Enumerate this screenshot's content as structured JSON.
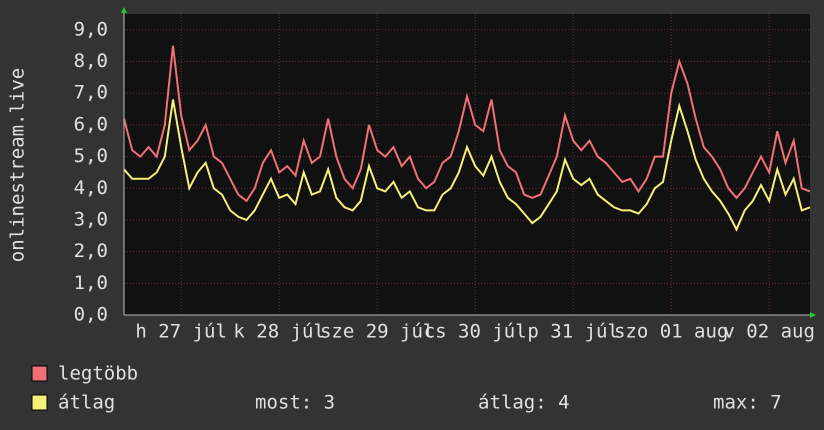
{
  "chart_data": {
    "type": "line",
    "y_label": "onlinestream.live",
    "ylim": [
      0,
      9.5
    ],
    "yticks": [
      {
        "value": 0,
        "label": "0,0"
      },
      {
        "value": 1,
        "label": "1,0"
      },
      {
        "value": 2,
        "label": "2,0"
      },
      {
        "value": 3,
        "label": "3,0"
      },
      {
        "value": 4,
        "label": "4,0"
      },
      {
        "value": 5,
        "label": "5,0"
      },
      {
        "value": 6,
        "label": "6,0"
      },
      {
        "value": 7,
        "label": "7,0"
      },
      {
        "value": 8,
        "label": "8,0"
      },
      {
        "value": 9,
        "label": "9,0"
      }
    ],
    "xlim": [
      0,
      84
    ],
    "xticks": [
      {
        "value": 7,
        "label": "h 27 júl"
      },
      {
        "value": 19,
        "label": "k 28 júl"
      },
      {
        "value": 31,
        "label": "sze 29 júl"
      },
      {
        "value": 43,
        "label": "cs 30 júl"
      },
      {
        "value": 55,
        "label": "p 31 júl"
      },
      {
        "value": 67,
        "label": "szo 01 aug"
      },
      {
        "value": 79,
        "label": "v 02 aug"
      }
    ],
    "grid": true,
    "series": [
      {
        "name": "legtöbb",
        "color": "#f07078",
        "values": [
          6.2,
          5.2,
          5.0,
          5.3,
          5.0,
          6.0,
          8.5,
          6.3,
          5.2,
          5.5,
          6.0,
          5.0,
          4.8,
          4.3,
          3.8,
          3.6,
          4.0,
          4.8,
          5.2,
          4.5,
          4.7,
          4.4,
          5.5,
          4.8,
          5.0,
          6.2,
          5.0,
          4.3,
          4.0,
          4.6,
          6.0,
          5.2,
          5.0,
          5.3,
          4.7,
          5.0,
          4.3,
          4.0,
          4.2,
          4.8,
          5.0,
          5.8,
          6.9,
          6.0,
          5.8,
          6.8,
          5.2,
          4.7,
          4.5,
          3.8,
          3.7,
          3.8,
          4.4,
          5.0,
          6.3,
          5.5,
          5.2,
          5.5,
          5.0,
          4.8,
          4.5,
          4.2,
          4.3,
          3.9,
          4.3,
          5.0,
          5.0,
          7.0,
          8.0,
          7.3,
          6.2,
          5.3,
          5.0,
          4.6,
          4.0,
          3.7,
          4.0,
          4.5,
          5.0,
          4.5,
          5.8,
          4.8,
          5.5,
          4.0,
          3.9
        ]
      },
      {
        "name": "átlag",
        "color": "#f5f07a",
        "values": [
          4.6,
          4.3,
          4.3,
          4.3,
          4.5,
          5.0,
          6.8,
          5.3,
          4.0,
          4.5,
          4.8,
          4.0,
          3.8,
          3.3,
          3.1,
          3.0,
          3.3,
          3.8,
          4.3,
          3.7,
          3.8,
          3.5,
          4.5,
          3.8,
          3.9,
          4.6,
          3.7,
          3.4,
          3.3,
          3.6,
          4.7,
          4.0,
          3.9,
          4.2,
          3.7,
          3.9,
          3.4,
          3.3,
          3.3,
          3.8,
          4.0,
          4.5,
          5.3,
          4.7,
          4.4,
          5.0,
          4.2,
          3.7,
          3.5,
          3.2,
          2.9,
          3.1,
          3.5,
          3.9,
          4.9,
          4.3,
          4.1,
          4.3,
          3.8,
          3.6,
          3.4,
          3.3,
          3.3,
          3.2,
          3.5,
          4.0,
          4.2,
          5.5,
          6.6,
          5.8,
          4.9,
          4.3,
          3.9,
          3.6,
          3.2,
          2.7,
          3.3,
          3.6,
          4.1,
          3.6,
          4.6,
          3.8,
          4.3,
          3.3,
          3.4
        ]
      }
    ],
    "stats": [
      "most: 3",
      "átlag: 4",
      "max: 7"
    ]
  }
}
